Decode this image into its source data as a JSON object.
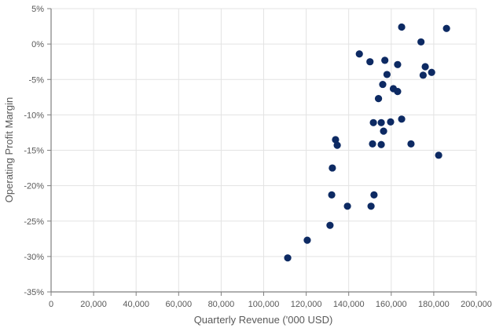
{
  "chart_data": {
    "type": "scatter",
    "title": "",
    "xlabel": "Quarterly Revenue ('000 USD)",
    "ylabel": "Operating Profit Margin",
    "xlim": [
      0,
      200000
    ],
    "ylim": [
      -35,
      5
    ],
    "x_ticks": [
      "0",
      "20,000",
      "40,000",
      "60,000",
      "80,000",
      "100,000",
      "120,000",
      "140,000",
      "160,000",
      "180,000",
      "200,000"
    ],
    "y_ticks": [
      "5%",
      "0%",
      "-5%",
      "-10%",
      "-15%",
      "-20%",
      "-25%",
      "-30%",
      "-35%"
    ],
    "grid": true,
    "legend": null,
    "marker_color": "#0d2a63",
    "points": [
      {
        "x": 164900,
        "y": 2.4
      },
      {
        "x": 186000,
        "y": 2.2
      },
      {
        "x": 174000,
        "y": 0.3
      },
      {
        "x": 145000,
        "y": -1.4
      },
      {
        "x": 150000,
        "y": -2.5
      },
      {
        "x": 157000,
        "y": -2.3
      },
      {
        "x": 163000,
        "y": -2.9
      },
      {
        "x": 176000,
        "y": -3.2
      },
      {
        "x": 158000,
        "y": -4.3
      },
      {
        "x": 175000,
        "y": -4.4
      },
      {
        "x": 179000,
        "y": -4.0
      },
      {
        "x": 156000,
        "y": -5.7
      },
      {
        "x": 161000,
        "y": -6.3
      },
      {
        "x": 163000,
        "y": -6.7
      },
      {
        "x": 154000,
        "y": -7.7
      },
      {
        "x": 151600,
        "y": -11.1
      },
      {
        "x": 155300,
        "y": -11.1
      },
      {
        "x": 159700,
        "y": -11.0
      },
      {
        "x": 164900,
        "y": -10.6
      },
      {
        "x": 156400,
        "y": -12.3
      },
      {
        "x": 133800,
        "y": -13.5
      },
      {
        "x": 134600,
        "y": -14.3
      },
      {
        "x": 151200,
        "y": -14.1
      },
      {
        "x": 155300,
        "y": -14.2
      },
      {
        "x": 169300,
        "y": -14.1
      },
      {
        "x": 182300,
        "y": -15.7
      },
      {
        "x": 132300,
        "y": -17.5
      },
      {
        "x": 132000,
        "y": -21.3
      },
      {
        "x": 151900,
        "y": -21.3
      },
      {
        "x": 139400,
        "y": -22.9
      },
      {
        "x": 150500,
        "y": -22.9
      },
      {
        "x": 131200,
        "y": -25.6
      },
      {
        "x": 120500,
        "y": -27.7
      },
      {
        "x": 111300,
        "y": -30.2
      }
    ]
  }
}
